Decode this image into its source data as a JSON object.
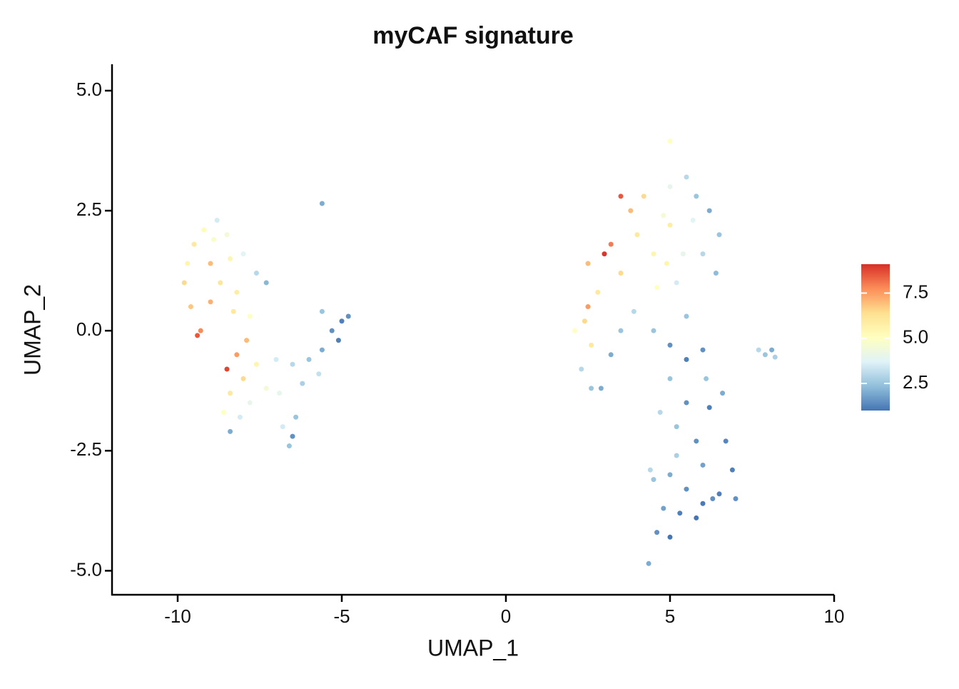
{
  "chart_data": {
    "type": "scatter",
    "title": "myCAF signature",
    "x_label": "UMAP_1",
    "y_label": "UMAP_2",
    "xlim": [
      -12,
      10
    ],
    "xticks": [
      -10,
      -5,
      0,
      5,
      10
    ],
    "ylim": [
      -5.5,
      5.55
    ],
    "yticks": [
      {
        "value": 5,
        "label": "5.0"
      },
      2.5,
      {
        "value": 0,
        "label": "0.0"
      },
      -2.5,
      {
        "value": -5,
        "label": "-5.0"
      }
    ],
    "clim": [
      1.0,
      9.1
    ],
    "cticks": [
      2.5,
      {
        "value": 5,
        "label": "5.0"
      },
      7.5
    ],
    "colors": [
      "#4575b4",
      "#91bfdb",
      "#e0f3f8",
      "#ffffbf",
      "#fee090",
      "#fc8d59",
      "#d73027"
    ],
    "x": [
      -9.8,
      -9.5,
      -9.2,
      -8.8,
      -8.5,
      -9.0,
      -9.6,
      -9.3,
      -8.7,
      -8.4,
      -8.0,
      -7.6,
      -7.3,
      -8.2,
      -9.0,
      -9.7,
      -8.9,
      -8.3,
      -7.8,
      -9.4,
      -8.5,
      -8.2,
      -7.9,
      -8.0,
      -8.4,
      -7.6,
      -7.3,
      -8.6,
      -8.1,
      -8.4,
      -7.8,
      -7.0,
      -6.6,
      -6.8,
      -6.4,
      -6.9,
      -6.5,
      -6.5,
      -6.0,
      -5.6,
      -5.3,
      -5.0,
      -4.8,
      -5.1,
      -5.6,
      -6.2,
      -5.7,
      -5.6,
      3.5,
      3.8,
      3.2,
      3.0,
      4.0,
      3.5,
      4.5,
      4.8,
      5.0,
      5.5,
      5.8,
      6.2,
      6.5,
      6.0,
      5.4,
      5.2,
      4.6,
      4.2,
      2.5,
      2.8,
      5.0,
      4.9,
      5.0,
      5.7,
      6.4,
      2.4,
      2.1,
      2.6,
      2.3,
      2.6,
      2.9,
      3.2,
      3.5,
      3.9,
      2.5,
      4.5,
      5.0,
      5.5,
      6.0,
      5.5,
      5.0,
      5.5,
      6.2,
      6.6,
      5.2,
      5.8,
      6.0,
      6.7,
      6.9,
      7.0,
      6.5,
      6.0,
      5.5,
      5.0,
      4.5,
      4.4,
      4.8,
      5.3,
      4.6,
      5.0,
      5.8,
      6.3,
      5.2,
      4.7,
      6.1,
      4.35,
      7.7,
      7.9,
      8.1,
      8.2
    ],
    "y": [
      1.0,
      1.8,
      2.1,
      2.3,
      2.0,
      1.4,
      0.5,
      0.0,
      1.0,
      1.5,
      1.6,
      1.2,
      1.0,
      0.8,
      0.6,
      1.4,
      1.9,
      0.4,
      0.3,
      -0.1,
      -0.8,
      -0.5,
      -0.2,
      -1.0,
      -1.3,
      -0.7,
      -1.2,
      -1.7,
      -1.8,
      -2.1,
      -1.5,
      -0.6,
      -2.4,
      -2.0,
      -1.8,
      -1.3,
      -2.2,
      -0.7,
      -0.6,
      -0.4,
      0.0,
      0.2,
      0.3,
      -0.2,
      0.4,
      -1.1,
      -0.9,
      2.65,
      2.8,
      2.5,
      1.8,
      1.6,
      2.0,
      1.2,
      1.6,
      2.4,
      3.0,
      3.2,
      2.8,
      2.5,
      2.0,
      1.6,
      1.6,
      1.0,
      0.9,
      2.8,
      1.4,
      0.8,
      2.2,
      1.4,
      3.95,
      2.3,
      1.2,
      0.2,
      0.0,
      -0.3,
      -0.8,
      -1.2,
      -1.2,
      -0.5,
      0.0,
      0.4,
      0.5,
      0.0,
      -0.3,
      -0.6,
      -0.4,
      0.3,
      -1.0,
      -1.5,
      -1.6,
      -1.3,
      -2.0,
      -2.3,
      -2.8,
      -2.3,
      -2.9,
      -3.5,
      -3.4,
      -3.6,
      -3.3,
      -3.0,
      -3.1,
      -2.9,
      -3.7,
      -3.8,
      -4.2,
      -4.3,
      -3.9,
      -3.5,
      -2.6,
      -1.7,
      -1.0,
      -4.85,
      -0.4,
      -0.5,
      -0.4,
      -0.55
    ],
    "color_values": [
      6.5,
      6.0,
      5.2,
      3.5,
      4.5,
      7.0,
      6.8,
      7.8,
      6.2,
      5.5,
      3.8,
      3.0,
      2.2,
      5.8,
      7.2,
      5.5,
      4.8,
      6.0,
      5.0,
      8.5,
      8.8,
      7.5,
      7.0,
      6.5,
      6.0,
      5.5,
      4.5,
      5.0,
      3.5,
      2.0,
      4.0,
      3.5,
      2.5,
      3.5,
      2.5,
      4.0,
      1.5,
      3.0,
      2.5,
      2.0,
      1.5,
      1.2,
      1.5,
      1.2,
      2.5,
      2.8,
      3.2,
      2.0,
      8.5,
      7.0,
      8.0,
      9.0,
      6.0,
      6.5,
      5.5,
      4.5,
      4.0,
      3.0,
      2.5,
      2.0,
      2.5,
      3.0,
      4.0,
      3.5,
      5.0,
      6.5,
      7.0,
      6.0,
      5.8,
      5.5,
      5.0,
      3.8,
      2.3,
      6.5,
      5.0,
      6.0,
      3.0,
      2.5,
      2.0,
      2.0,
      2.5,
      3.0,
      7.5,
      2.5,
      1.5,
      1.2,
      1.5,
      2.5,
      2.5,
      1.5,
      1.2,
      2.0,
      2.5,
      1.5,
      1.8,
      1.3,
      1.2,
      1.5,
      1.2,
      1.1,
      1.5,
      2.0,
      2.5,
      3.0,
      1.8,
      1.2,
      1.5,
      1.0,
      1.0,
      1.5,
      2.8,
      3.0,
      2.5,
      2.0,
      3.0,
      2.5,
      2.0,
      2.8
    ]
  }
}
